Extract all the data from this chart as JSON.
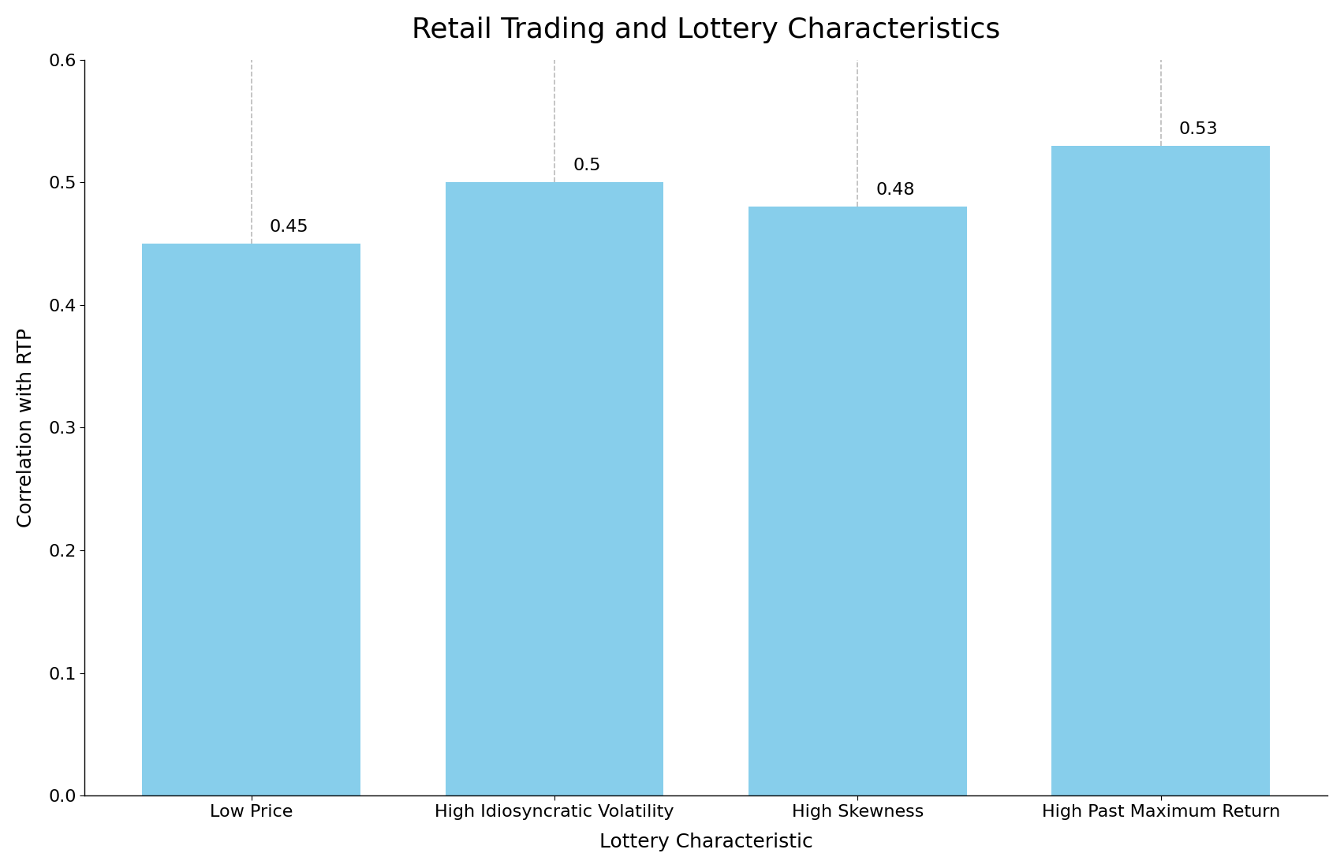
{
  "categories": [
    "Low Price",
    "High Idiosyncratic Volatility",
    "High Skewness",
    "High Past Maximum Return"
  ],
  "values": [
    0.45,
    0.5,
    0.48,
    0.53
  ],
  "bar_color": "#87CEEB",
  "bar_edgecolor": "none",
  "title": "Retail Trading and Lottery Characteristics",
  "xlabel": "Lottery Characteristic",
  "ylabel": "Correlation with RTP",
  "ylim": [
    0.0,
    0.6
  ],
  "yticks": [
    0.0,
    0.1,
    0.2,
    0.3,
    0.4,
    0.5,
    0.6
  ],
  "title_fontsize": 26,
  "label_fontsize": 18,
  "tick_fontsize": 16,
  "annotation_fontsize": 16,
  "bar_width": 0.72,
  "dashed_line_color": "#bbbbbb",
  "background_color": "#ffffff",
  "annotation_labels": [
    "0.45",
    "0.5",
    "0.48",
    "0.53"
  ]
}
